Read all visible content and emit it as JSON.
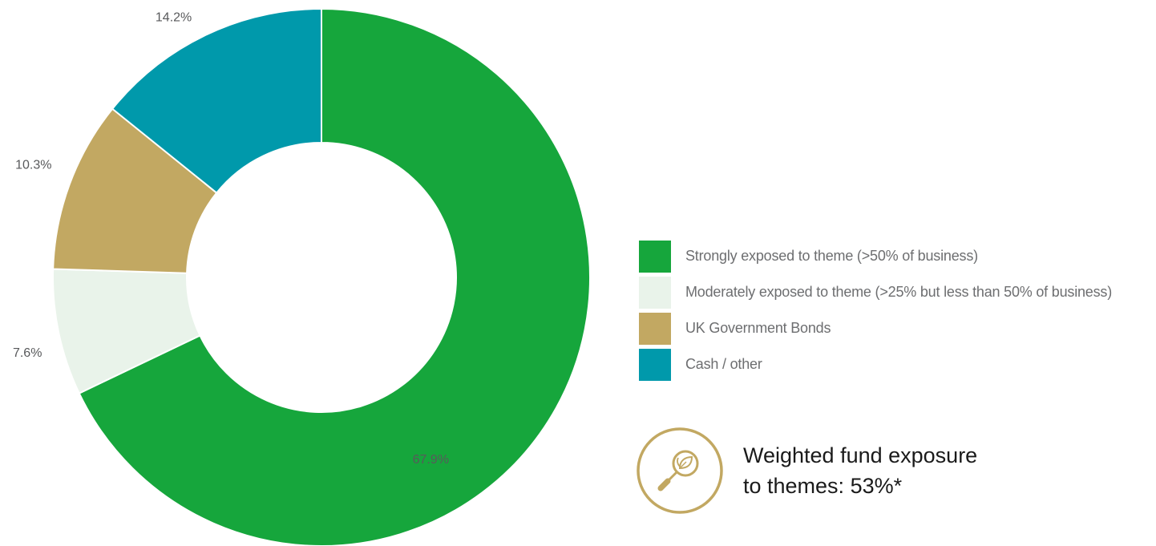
{
  "chart_data": {
    "type": "pie",
    "variant": "donut",
    "slices": [
      {
        "label": "Strongly exposed to theme (>50% of business)",
        "value": 67.9,
        "value_label": "67.9%",
        "color": "#16a63c"
      },
      {
        "label": "Moderately exposed to theme (>25% but less than 50% of business)",
        "value": 7.6,
        "value_label": "7.6%",
        "color": "#e9f3ea"
      },
      {
        "label": "UK Government Bonds",
        "value": 10.3,
        "value_label": "10.3%",
        "color": "#c2a862"
      },
      {
        "label": "Cash / other",
        "value": 14.2,
        "value_label": "14.2%",
        "color": "#0099ab"
      }
    ],
    "start_angle_deg": 0,
    "direction": "clockwise",
    "legend_position": "right"
  },
  "callout": {
    "line1": "Weighted fund exposure",
    "line2": "to themes: 53%*",
    "icon": "magnifier-leaf-icon",
    "icon_color": "#c2a862"
  }
}
